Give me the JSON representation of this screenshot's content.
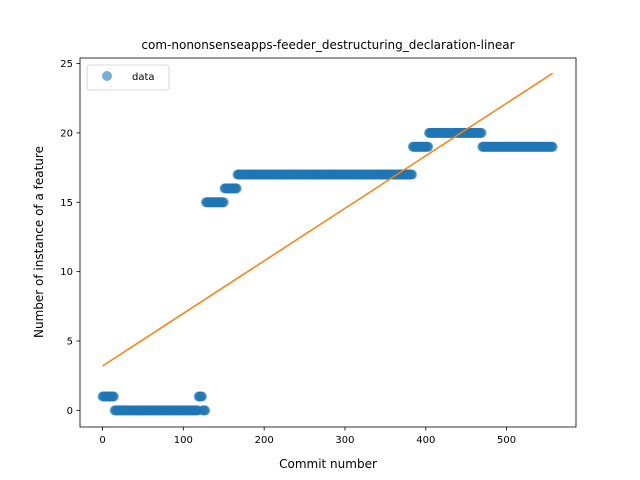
{
  "chart_data": {
    "type": "scatter",
    "title": "com-nononsenseapps-feeder_destructuring_declaration-linear",
    "xlabel": "Commit number",
    "ylabel": "Number of instance of a feature",
    "xlim": [
      -27.9,
      585.9
    ],
    "ylim": [
      -1.2,
      25.4
    ],
    "xticks": [
      0,
      100,
      200,
      300,
      400,
      500
    ],
    "yticks": [
      0,
      5,
      10,
      15,
      20,
      25
    ],
    "grid": false,
    "legend": {
      "placement": "top-left",
      "entries": [
        "data"
      ]
    },
    "colors": {
      "data": "#1f77b4",
      "fit": "#ff7f0e"
    },
    "series": [
      {
        "name": "data",
        "kind": "scatter",
        "segments": [
          {
            "x_start": 0,
            "x_end": 14,
            "y": 1
          },
          {
            "x_start": 15,
            "x_end": 118,
            "y": 0
          },
          {
            "x_start": 119,
            "x_end": 123,
            "y": 1
          },
          {
            "x_start": 124,
            "x_end": 127,
            "y": 0
          },
          {
            "x_start": 128,
            "x_end": 150,
            "y": 15
          },
          {
            "x_start": 151,
            "x_end": 166,
            "y": 16
          },
          {
            "x_start": 167,
            "x_end": 383,
            "y": 17
          },
          {
            "x_start": 384,
            "x_end": 403,
            "y": 19
          },
          {
            "x_start": 404,
            "x_end": 469,
            "y": 20
          },
          {
            "x_start": 470,
            "x_end": 557,
            "y": 19
          }
        ]
      },
      {
        "kind": "line",
        "x": [
          0,
          557
        ],
        "y": [
          3.2,
          24.3
        ]
      }
    ]
  }
}
